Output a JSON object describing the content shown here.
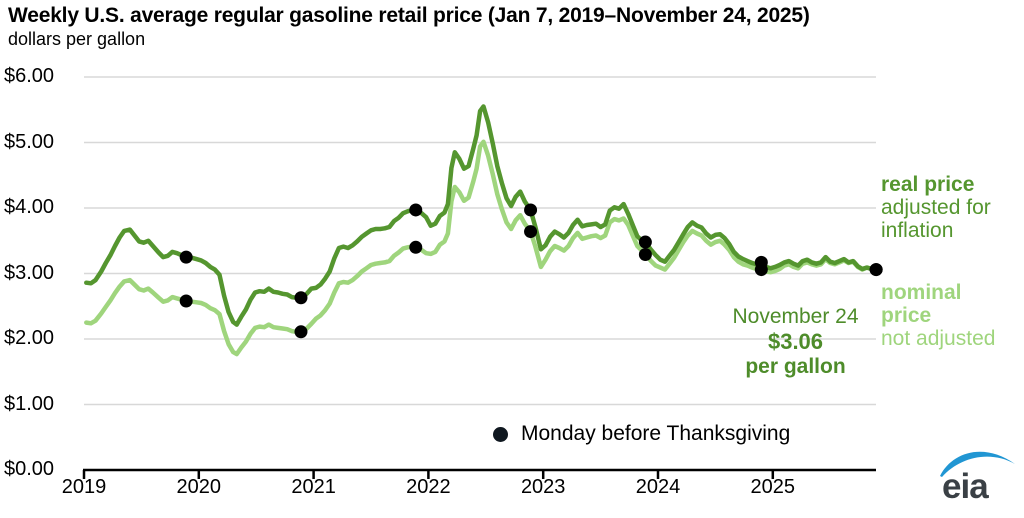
{
  "header": {
    "title": "Weekly U.S. average regular gasoline retail price (Jan 7, 2019–November 24, 2025)",
    "subtitle": "dollars per gallon"
  },
  "colors": {
    "real": "#55962f",
    "nominal": "#9fd57d",
    "grid": "#d8d8d8",
    "axis": "#000000",
    "dot": "#000000",
    "legend_dot": "#101820",
    "annotation": "#4e8c2a",
    "logo_text": "#3a4045",
    "logo_swoosh": "#2196d3"
  },
  "legend_right": {
    "real_title": "real price",
    "real_desc1": "adjusted for",
    "real_desc2": "inflation",
    "nominal_title1": "nominal",
    "nominal_title2": "price",
    "nominal_desc": "not adjusted"
  },
  "annotation": {
    "date": "November 24",
    "price": "$3.06",
    "unit": "per gallon"
  },
  "legend_bottom": {
    "label": "Monday before Thanksgiving"
  },
  "logo": {
    "text": "eia"
  },
  "chart_data": {
    "type": "line",
    "title": "Weekly U.S. average regular gasoline retail price (Jan 7, 2019–November 24, 2025)",
    "ylabel": "dollars per gallon",
    "xlim": [
      2019.0,
      2025.92
    ],
    "ylim": [
      0,
      6
    ],
    "grid": "horizontal",
    "yticks": [
      {
        "value": 0,
        "label": "$0.00"
      },
      {
        "value": 1,
        "label": "$1.00"
      },
      {
        "value": 2,
        "label": "$2.00"
      },
      {
        "value": 3,
        "label": "$3.00"
      },
      {
        "value": 4,
        "label": "$4.00"
      },
      {
        "value": 5,
        "label": "$5.00"
      },
      {
        "value": 6,
        "label": "$6.00"
      }
    ],
    "xticks": [
      2019,
      2020,
      2021,
      2022,
      2023,
      2024,
      2025
    ],
    "x": [
      2019.02,
      2019.06,
      2019.1,
      2019.15,
      2019.19,
      2019.23,
      2019.27,
      2019.31,
      2019.35,
      2019.4,
      2019.44,
      2019.48,
      2019.52,
      2019.56,
      2019.6,
      2019.65,
      2019.69,
      2019.73,
      2019.77,
      2019.81,
      2019.85,
      2019.89,
      2019.94,
      2019.98,
      2020.02,
      2020.06,
      2020.1,
      2020.14,
      2020.18,
      2020.22,
      2020.26,
      2020.3,
      2020.33,
      2020.37,
      2020.41,
      2020.45,
      2020.49,
      2020.53,
      2020.57,
      2020.61,
      2020.65,
      2020.69,
      2020.73,
      2020.77,
      2020.81,
      2020.85,
      2020.89,
      2020.94,
      2020.98,
      2021.02,
      2021.06,
      2021.1,
      2021.14,
      2021.18,
      2021.22,
      2021.26,
      2021.3,
      2021.34,
      2021.38,
      2021.42,
      2021.46,
      2021.5,
      2021.54,
      2021.58,
      2021.62,
      2021.66,
      2021.7,
      2021.74,
      2021.78,
      2021.82,
      2021.86,
      2021.89,
      2021.94,
      2021.98,
      2022.02,
      2022.06,
      2022.1,
      2022.14,
      2022.17,
      2022.2,
      2022.23,
      2022.27,
      2022.31,
      2022.35,
      2022.39,
      2022.42,
      2022.45,
      2022.48,
      2022.52,
      2022.56,
      2022.6,
      2022.64,
      2022.68,
      2022.72,
      2022.76,
      2022.8,
      2022.84,
      2022.89,
      2022.93,
      2022.98,
      2023.02,
      2023.06,
      2023.1,
      2023.14,
      2023.18,
      2023.22,
      2023.26,
      2023.3,
      2023.34,
      2023.38,
      2023.42,
      2023.46,
      2023.5,
      2023.54,
      2023.58,
      2023.62,
      2023.66,
      2023.7,
      2023.74,
      2023.78,
      2023.82,
      2023.86,
      2023.89,
      2023.94,
      2023.98,
      2024.02,
      2024.06,
      2024.1,
      2024.14,
      2024.18,
      2024.22,
      2024.26,
      2024.3,
      2024.34,
      2024.38,
      2024.42,
      2024.46,
      2024.5,
      2024.54,
      2024.58,
      2024.62,
      2024.66,
      2024.7,
      2024.74,
      2024.78,
      2024.82,
      2024.86,
      2024.9,
      2024.94,
      2024.98,
      2025.02,
      2025.06,
      2025.1,
      2025.14,
      2025.18,
      2025.22,
      2025.26,
      2025.3,
      2025.34,
      2025.38,
      2025.42,
      2025.46,
      2025.5,
      2025.54,
      2025.58,
      2025.62,
      2025.66,
      2025.7,
      2025.74,
      2025.78,
      2025.82,
      2025.86,
      2025.9
    ],
    "series": [
      {
        "name": "real price (adjusted for inflation)",
        "color_key": "real",
        "values": [
          2.86,
          2.85,
          2.9,
          3.03,
          3.16,
          3.28,
          3.42,
          3.55,
          3.65,
          3.67,
          3.58,
          3.49,
          3.47,
          3.5,
          3.42,
          3.32,
          3.25,
          3.27,
          3.33,
          3.31,
          3.28,
          3.25,
          3.24,
          3.22,
          3.2,
          3.16,
          3.1,
          3.06,
          2.98,
          2.66,
          2.41,
          2.26,
          2.22,
          2.34,
          2.45,
          2.6,
          2.71,
          2.73,
          2.72,
          2.77,
          2.72,
          2.71,
          2.69,
          2.68,
          2.64,
          2.63,
          2.63,
          2.69,
          2.77,
          2.78,
          2.83,
          2.92,
          3.03,
          3.23,
          3.39,
          3.41,
          3.39,
          3.43,
          3.49,
          3.56,
          3.61,
          3.66,
          3.68,
          3.68,
          3.69,
          3.71,
          3.8,
          3.85,
          3.92,
          3.95,
          3.97,
          3.97,
          3.92,
          3.86,
          3.73,
          3.76,
          3.88,
          3.93,
          4.06,
          4.61,
          4.85,
          4.75,
          4.6,
          4.64,
          4.9,
          5.11,
          5.48,
          5.55,
          5.31,
          4.99,
          4.64,
          4.38,
          4.15,
          4.03,
          4.17,
          4.25,
          4.1,
          3.97,
          3.72,
          3.37,
          3.43,
          3.56,
          3.64,
          3.6,
          3.55,
          3.62,
          3.74,
          3.82,
          3.72,
          3.74,
          3.75,
          3.76,
          3.71,
          3.75,
          3.96,
          4.01,
          3.99,
          4.06,
          3.91,
          3.74,
          3.57,
          3.5,
          3.48,
          3.36,
          3.28,
          3.21,
          3.18,
          3.27,
          3.36,
          3.48,
          3.6,
          3.71,
          3.78,
          3.73,
          3.7,
          3.61,
          3.55,
          3.59,
          3.6,
          3.54,
          3.45,
          3.33,
          3.26,
          3.22,
          3.19,
          3.16,
          3.14,
          3.17,
          3.1,
          3.08,
          3.1,
          3.13,
          3.17,
          3.19,
          3.15,
          3.12,
          3.19,
          3.21,
          3.17,
          3.15,
          3.17,
          3.25,
          3.18,
          3.16,
          3.19,
          3.22,
          3.17,
          3.19,
          3.11,
          3.07,
          3.09,
          3.07,
          3.06
        ]
      },
      {
        "name": "nominal price (not adjusted)",
        "color_key": "nominal",
        "values": [
          2.25,
          2.24,
          2.28,
          2.39,
          2.49,
          2.59,
          2.7,
          2.8,
          2.88,
          2.9,
          2.83,
          2.76,
          2.74,
          2.77,
          2.71,
          2.63,
          2.57,
          2.59,
          2.64,
          2.62,
          2.6,
          2.58,
          2.57,
          2.56,
          2.55,
          2.52,
          2.47,
          2.44,
          2.38,
          2.12,
          1.92,
          1.8,
          1.77,
          1.87,
          1.96,
          2.08,
          2.17,
          2.19,
          2.18,
          2.22,
          2.18,
          2.17,
          2.16,
          2.15,
          2.12,
          2.11,
          2.11,
          2.16,
          2.23,
          2.31,
          2.36,
          2.44,
          2.54,
          2.71,
          2.85,
          2.87,
          2.86,
          2.9,
          2.96,
          3.03,
          3.08,
          3.13,
          3.15,
          3.16,
          3.17,
          3.19,
          3.27,
          3.32,
          3.38,
          3.4,
          3.41,
          3.4,
          3.36,
          3.31,
          3.3,
          3.33,
          3.44,
          3.49,
          3.61,
          4.1,
          4.32,
          4.24,
          4.11,
          4.16,
          4.4,
          4.6,
          4.94,
          5.01,
          4.8,
          4.52,
          4.21,
          3.98,
          3.78,
          3.68,
          3.81,
          3.89,
          3.76,
          3.64,
          3.42,
          3.1,
          3.21,
          3.34,
          3.42,
          3.39,
          3.35,
          3.42,
          3.54,
          3.62,
          3.53,
          3.55,
          3.57,
          3.58,
          3.54,
          3.58,
          3.78,
          3.83,
          3.81,
          3.84,
          3.74,
          3.58,
          3.42,
          3.35,
          3.29,
          3.19,
          3.12,
          3.09,
          3.06,
          3.15,
          3.24,
          3.36,
          3.48,
          3.58,
          3.65,
          3.61,
          3.58,
          3.5,
          3.44,
          3.48,
          3.5,
          3.44,
          3.36,
          3.25,
          3.18,
          3.14,
          3.12,
          3.09,
          3.07,
          3.06,
          3.03,
          3.02,
          3.04,
          3.07,
          3.12,
          3.14,
          3.1,
          3.08,
          3.15,
          3.17,
          3.14,
          3.12,
          3.14,
          3.22,
          3.16,
          3.14,
          3.17,
          3.2,
          3.16,
          3.18,
          3.1,
          3.06,
          3.09,
          3.07,
          3.06
        ]
      }
    ],
    "monday_dots": {
      "label": "Monday before Thanksgiving",
      "points": [
        {
          "x": 2019.89,
          "real": 3.25,
          "nominal": 2.58
        },
        {
          "x": 2020.89,
          "real": 2.63,
          "nominal": 2.11
        },
        {
          "x": 2021.89,
          "real": 3.97,
          "nominal": 3.4
        },
        {
          "x": 2022.89,
          "real": 3.97,
          "nominal": 3.64
        },
        {
          "x": 2023.89,
          "real": 3.48,
          "nominal": 3.29
        },
        {
          "x": 2024.9,
          "real": 3.17,
          "nominal": 3.06
        },
        {
          "x": 2025.9,
          "real": 3.06,
          "nominal": 3.06
        }
      ]
    },
    "annotation": {
      "date": "November 24",
      "value": 3.06,
      "unit": "per gallon"
    }
  }
}
